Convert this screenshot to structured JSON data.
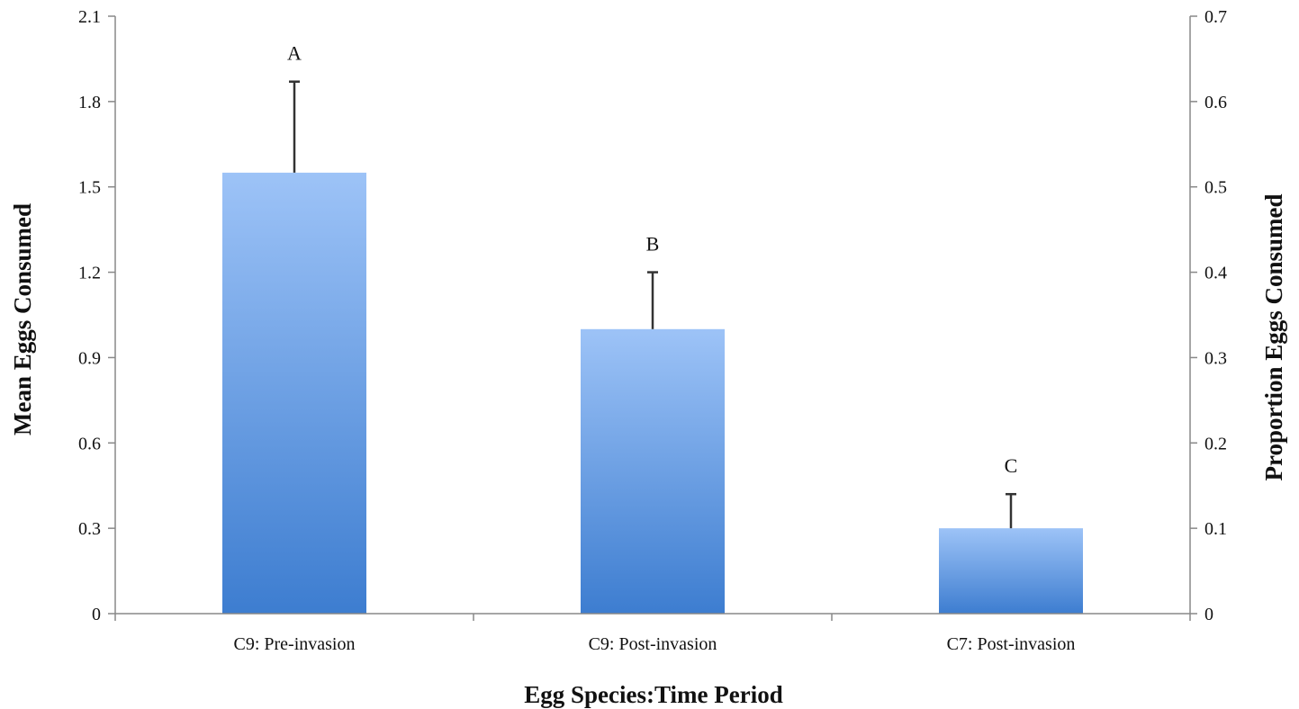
{
  "chart_data": {
    "type": "bar",
    "title": "",
    "xlabel": "Egg Species:Time Period",
    "ylabel": "Mean Eggs Consumed",
    "y2label": "Proportion Eggs Consumed",
    "categories": [
      "C9: Pre-invasion",
      "C9: Post-invasion",
      "C7: Post-invasion"
    ],
    "series": [
      {
        "values": [
          1.55,
          1.0,
          0.3
        ],
        "error_upper": [
          0.32,
          0.2,
          0.12
        ],
        "significance_labels": [
          "A",
          "B",
          "C"
        ]
      }
    ],
    "ylim": [
      0,
      2.1
    ],
    "yticks": [
      "0",
      "0.3",
      "0.6",
      "0.9",
      "1.2",
      "1.5",
      "1.8",
      "2.1"
    ],
    "y2lim": [
      0,
      0.7
    ],
    "y2ticks": [
      "0",
      "0.1",
      "0.2",
      "0.3",
      "0.4",
      "0.5",
      "0.6",
      "0.7"
    ],
    "grid": false,
    "legend": "none",
    "colors": {
      "bar_top": "#9dc3f7",
      "bar_bottom": "#3d7dd0",
      "axis": "#888888",
      "error_bar": "#333333",
      "text": "#111111"
    }
  }
}
